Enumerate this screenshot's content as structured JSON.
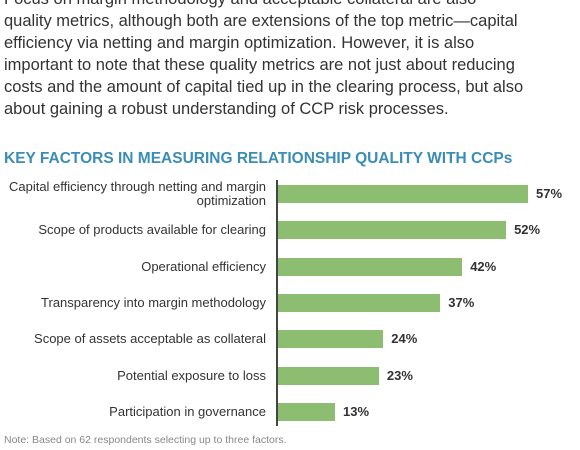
{
  "paragraph": {
    "lines": [
      "Focus on margin methodology and acceptable collateral are also",
      "quality metrics, although both are extensions of the top metric—capital",
      "efficiency via netting and margin optimization. However, it is also",
      "important to note that these quality metrics are not just about reducing",
      "costs and the amount of capital tied up in the clearing process, but also",
      "about gaining a robust understanding of CCP risk processes."
    ]
  },
  "chart_data": {
    "type": "bar",
    "orientation": "horizontal",
    "title": "KEY FACTORS IN MEASURING RELATIONSHIP QUALITY WITH CCPs",
    "categories": [
      "Capital efficiency through netting and margin optimization",
      "Scope of products available for clearing",
      "Operational efficiency",
      "Transparency into margin methodology",
      "Scope of assets acceptable as collateral",
      "Potential exposure to loss",
      "Participation in governance"
    ],
    "values": [
      57,
      52,
      42,
      37,
      24,
      23,
      13
    ],
    "value_labels": [
      "57%",
      "52%",
      "42%",
      "37%",
      "24%",
      "23%",
      "13%"
    ],
    "color": "#8dbd70",
    "note": "Note: Based on 62 respondents selecting up to three factors."
  }
}
